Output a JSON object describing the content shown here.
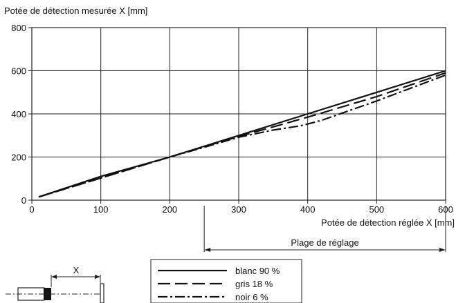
{
  "chart_data": {
    "type": "line",
    "ylabel": "Potée de détection mesurée X [mm]",
    "xlabel": "Potée de détection réglée X [mm]",
    "xlim": [
      0,
      600
    ],
    "ylim": [
      0,
      800
    ],
    "x_ticks": [
      0,
      100,
      200,
      300,
      400,
      500,
      600
    ],
    "y_ticks": [
      0,
      200,
      400,
      600,
      800
    ],
    "grid": true,
    "legend_position": "bottom-center",
    "series": [
      {
        "name": "blanc 90 %",
        "dash": "solid",
        "x": [
          10,
          100,
          200,
          300,
          400,
          500,
          600
        ],
        "y": [
          15,
          110,
          200,
          300,
          400,
          500,
          600
        ]
      },
      {
        "name": "gris 18 %",
        "dash": "dashed",
        "x": [
          10,
          200,
          250,
          300,
          350,
          400,
          500,
          600
        ],
        "y": [
          15,
          200,
          248,
          295,
          340,
          385,
          480,
          590
        ]
      },
      {
        "name": "noir 6 %",
        "dash": "dashdot",
        "x": [
          10,
          200,
          250,
          300,
          350,
          390,
          420,
          500,
          600
        ],
        "y": [
          15,
          200,
          245,
          292,
          325,
          345,
          370,
          460,
          580
        ]
      }
    ],
    "annotations": {
      "range_label": "Plage de réglage",
      "range_start": 250,
      "range_end": 600,
      "diagram_label": "X"
    },
    "colors": {
      "line": "#111111",
      "grid": "#222222",
      "background": "#ffffff"
    }
  }
}
